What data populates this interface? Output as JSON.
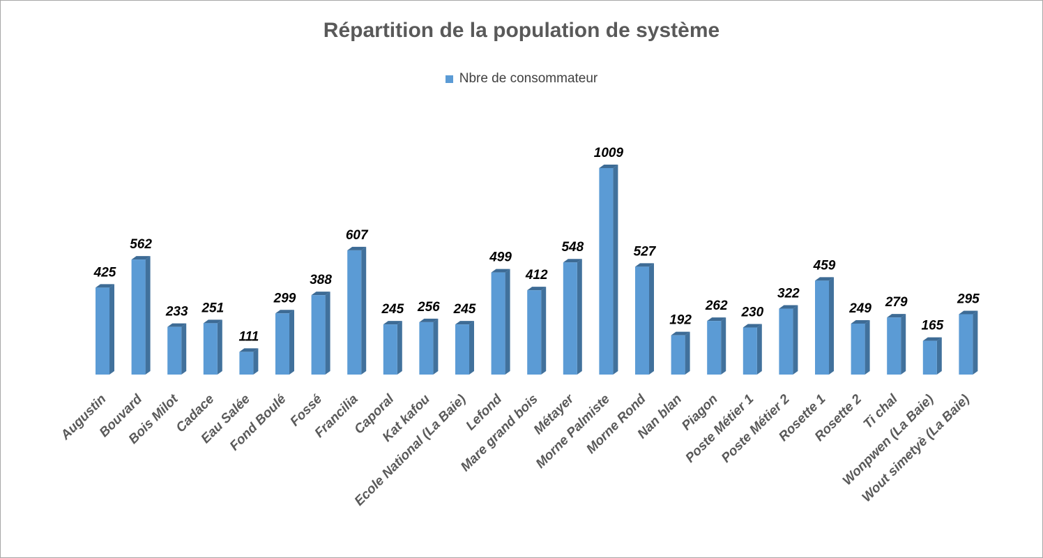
{
  "chart_data": {
    "type": "bar",
    "title": "Répartition de la population de système",
    "legend": "top",
    "grid": false,
    "style": "3d-column",
    "colors": {
      "face": "#5b9bd5",
      "side": "#41719c",
      "top": "#3d6b95"
    },
    "series": [
      {
        "name": "Nbre de consommateur",
        "values": [
          425,
          562,
          233,
          251,
          111,
          299,
          388,
          607,
          245,
          256,
          245,
          499,
          412,
          548,
          1009,
          527,
          192,
          262,
          230,
          322,
          459,
          249,
          279,
          165,
          295
        ]
      }
    ],
    "categories": [
      "Augustin",
      "Bouvard",
      "Bois Milot",
      "Cadace",
      "Eau Salée",
      "Fond Boulé",
      "Fossé",
      "Francilia",
      "Caporal",
      "Kat kafou",
      "Ecole National (La Baie)",
      "Lefond",
      "Mare grand bois",
      "Métayer",
      "Morne Palmiste",
      "Morne Rond",
      "Nan blan",
      "Piagon",
      "Poste Métier 1",
      "Poste Métier 2",
      "Rosette 1",
      "Rosette 2",
      "Ti chal",
      "Wonpwen (La Baie)",
      "Wout simetyè (La Baie)"
    ],
    "ylim": [
      0,
      1009
    ]
  }
}
